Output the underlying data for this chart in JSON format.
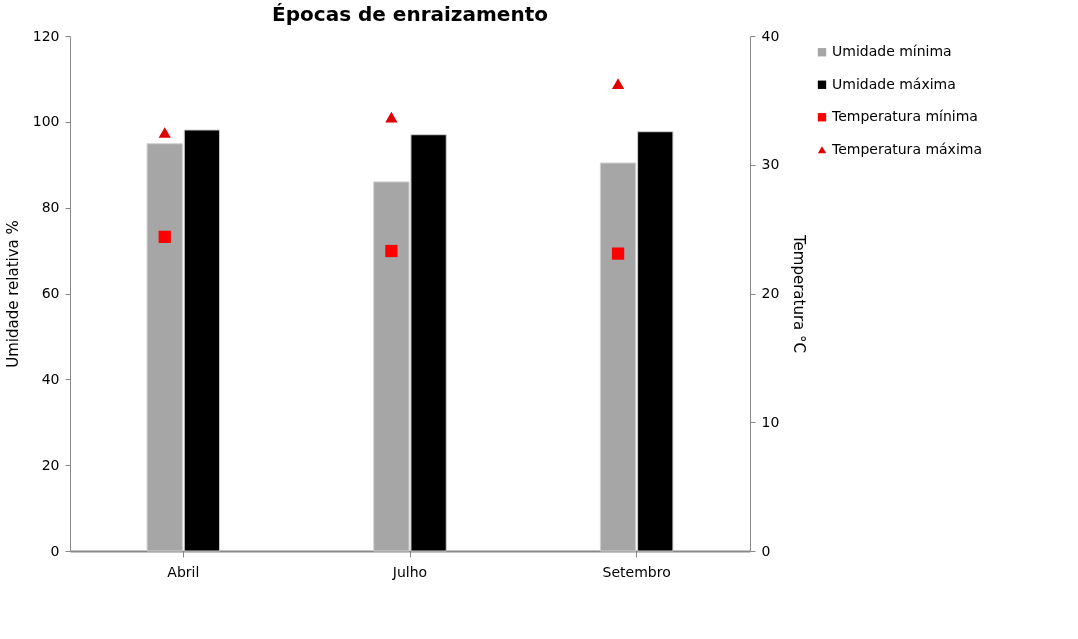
{
  "chart_data": {
    "type": "bar",
    "title": "Épocas de enraizamento",
    "ylabel": "Umidade relativa  %",
    "y2label": "Temperatura  °C",
    "categories": [
      "Abril",
      "Julho",
      "Setembro"
    ],
    "series": [
      {
        "name": "Umidade mínima",
        "color": "#a6a6a6",
        "values": [
          94.9,
          86.0,
          90.4
        ]
      },
      {
        "name": "Umidade máxima",
        "color": "#000000",
        "values": [
          98.1,
          97.0,
          97.7
        ]
      },
      {
        "name": "Temperatura mínima",
        "type": "scatter",
        "marker": "square",
        "axis": "y2",
        "color": "#ff0000",
        "values": [
          24.4,
          23.3,
          23.1
        ]
      },
      {
        "name": "Temperatura máxima",
        "type": "scatter",
        "marker": "triangle",
        "axis": "y2",
        "color": "#e00000",
        "values": [
          32.5,
          33.7,
          36.3
        ]
      }
    ],
    "ylim": [
      0,
      120
    ],
    "yticks": [
      0,
      20,
      40,
      60,
      80,
      100,
      120
    ],
    "y2lim": [
      0,
      40
    ],
    "y2ticks": [
      0,
      10,
      20,
      30,
      40
    ],
    "grid": false,
    "legend": "right"
  }
}
